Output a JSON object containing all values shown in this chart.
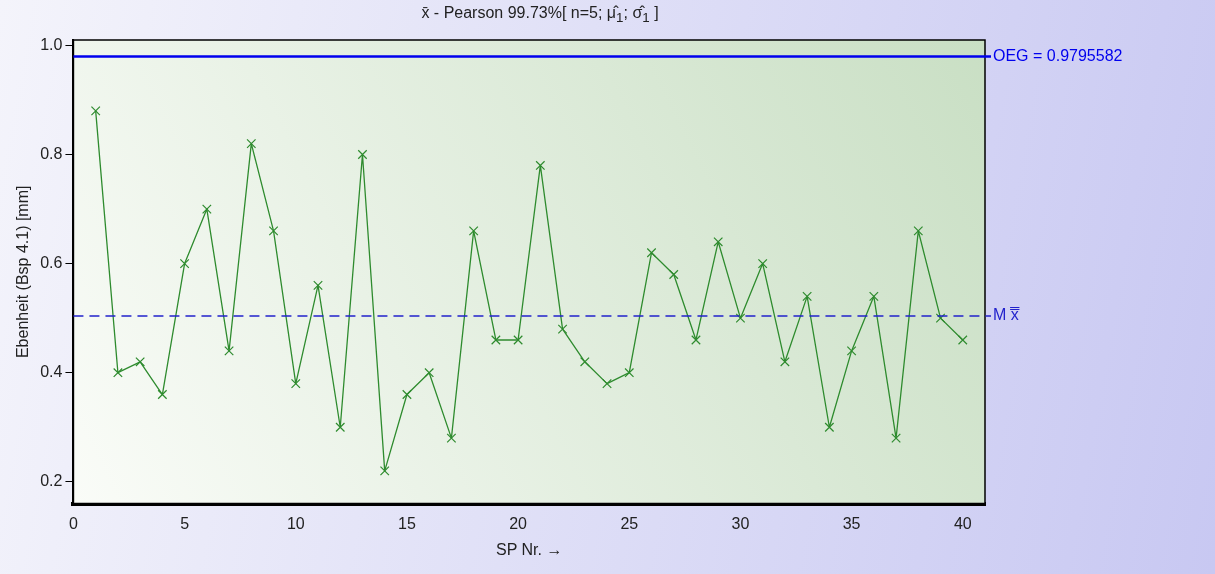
{
  "chart_data": {
    "type": "line",
    "title": "x̄ - Pearson 99.73%[ n=5; μ̂$_{1}$; σ̂$_{1}$ ]",
    "xlabel": "SP Nr. →",
    "ylabel": "Ebenheit (Bsp 4.1) [mm]",
    "x": [
      1,
      2,
      3,
      4,
      5,
      6,
      7,
      8,
      9,
      10,
      11,
      12,
      13,
      14,
      15,
      16,
      17,
      18,
      19,
      20,
      21,
      22,
      23,
      24,
      25,
      26,
      27,
      28,
      29,
      30,
      31,
      32,
      33,
      34,
      35,
      36,
      37,
      38,
      39,
      40
    ],
    "series": [
      {
        "color": "#2e8b2e",
        "values": [
          0.88,
          0.4,
          0.42,
          0.36,
          0.6,
          0.7,
          0.44,
          0.82,
          0.66,
          0.38,
          0.56,
          0.3,
          0.8,
          0.22,
          0.36,
          0.4,
          0.28,
          0.66,
          0.46,
          0.46,
          0.78,
          0.48,
          0.42,
          0.38,
          0.4,
          0.62,
          0.58,
          0.46,
          0.64,
          0.5,
          0.6,
          0.42,
          0.54,
          0.3,
          0.44,
          0.54,
          0.28,
          0.66,
          0.5,
          0.46
        ]
      }
    ],
    "xlim": [
      0,
      41
    ],
    "xticks": [
      0,
      5,
      10,
      15,
      20,
      25,
      30,
      35,
      40
    ],
    "ylim": [
      0.16,
      1.01
    ],
    "yticks": [
      {
        "value": 0.2,
        "label": "0.2"
      },
      {
        "value": 0.4,
        "label": "0.4"
      },
      {
        "value": 0.6,
        "label": "0.6"
      },
      {
        "value": 0.8,
        "label": "0.8"
      },
      {
        "value": 1.0,
        "label": "1.0"
      }
    ],
    "ref_lines": [
      {
        "axis": "y",
        "value": 0.9795582,
        "label": "OEG = 0.9795582",
        "color": "#0000ee",
        "line_style": "solid"
      },
      {
        "axis": "y",
        "value": 0.504,
        "label": "M x̿",
        "color": "#2222cc",
        "line_style": "dashed"
      }
    ],
    "grid": false,
    "legend": false,
    "marker": "cross",
    "line_style": "solid"
  }
}
